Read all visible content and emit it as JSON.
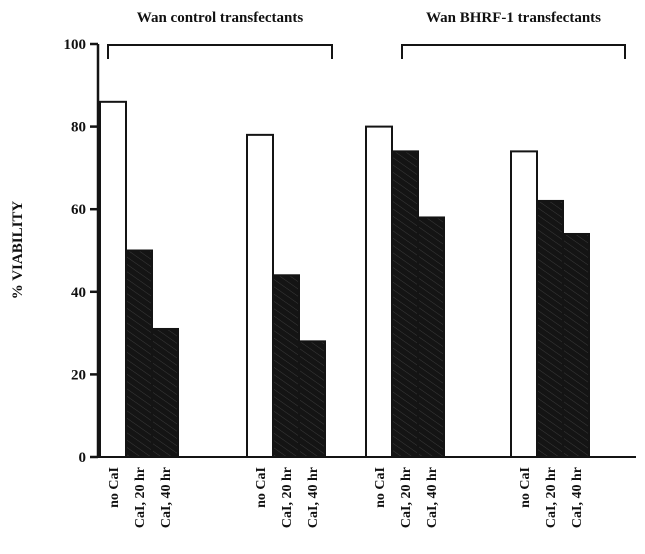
{
  "chart_data": {
    "type": "bar",
    "title": "",
    "ylabel": "% VIABILITY",
    "xlabel": "",
    "ylim": [
      0,
      100
    ],
    "yticks": [
      0,
      20,
      40,
      60,
      80,
      100
    ],
    "groups": [
      {
        "bracket": 0,
        "categories": [
          "no CaI",
          "CaI, 20 hr",
          "CaI, 40 hr"
        ],
        "values": [
          86,
          50,
          31
        ]
      },
      {
        "bracket": 0,
        "categories": [
          "no CaI",
          "CaI, 20 hr",
          "CaI, 40 hr"
        ],
        "values": [
          78,
          44,
          28
        ]
      },
      {
        "bracket": 1,
        "categories": [
          "no CaI",
          "CaI, 20 hr",
          "CaI, 40 hr"
        ],
        "values": [
          80,
          74,
          58
        ]
      },
      {
        "bracket": 1,
        "categories": [
          "no CaI",
          "CaI, 20 hr",
          "CaI, 40 hr"
        ],
        "values": [
          74,
          62,
          54
        ]
      }
    ],
    "brackets": [
      {
        "label": "Wan control transfectants"
      },
      {
        "label": "Wan BHRF-1 transfectants"
      }
    ],
    "bar_styles": [
      "open",
      "filled",
      "filled"
    ],
    "colors": {
      "open_fill": "#ffffff",
      "filled": "#141414",
      "stroke": "#141414"
    },
    "legend": "none",
    "grid": false
  }
}
